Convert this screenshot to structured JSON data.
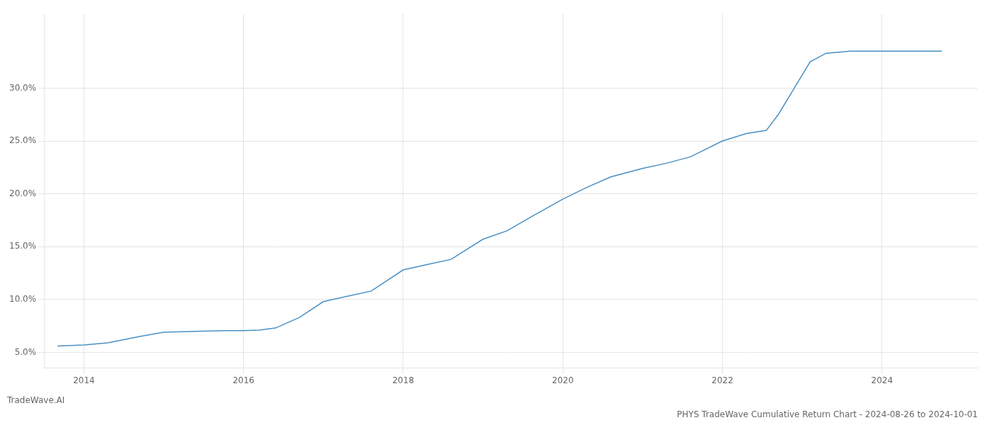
{
  "chart_data": {
    "type": "line",
    "title": "PHYS TradeWave Cumulative Return Chart - 2024-08-26 to 2024-10-01",
    "annotations": [
      "TradeWave.AI"
    ],
    "x": [
      2013.67,
      2014.0,
      2014.3,
      2014.7,
      2015.0,
      2015.5,
      2015.8,
      2016.0,
      2016.2,
      2016.4,
      2016.7,
      2017.0,
      2017.3,
      2017.6,
      2018.0,
      2018.3,
      2018.6,
      2019.0,
      2019.3,
      2019.6,
      2020.0,
      2020.3,
      2020.6,
      2021.0,
      2021.3,
      2021.6,
      2022.0,
      2022.3,
      2022.55,
      2022.7,
      2022.9,
      2023.1,
      2023.3,
      2023.6,
      2024.0,
      2024.5,
      2024.75
    ],
    "series": [
      {
        "color": "#4a90c4",
        "values": [
          5.6,
          5.7,
          5.9,
          6.5,
          6.9,
          7.0,
          7.05,
          7.05,
          7.1,
          7.3,
          8.3,
          9.8,
          10.3,
          10.8,
          12.8,
          13.3,
          13.8,
          15.7,
          16.5,
          17.8,
          19.5,
          20.6,
          21.6,
          22.4,
          22.9,
          23.5,
          25.0,
          25.7,
          26.0,
          27.5,
          30.0,
          32.5,
          33.3,
          33.5,
          33.5,
          33.5,
          33.5
        ]
      }
    ],
    "xlim": [
      2013.5,
      2025.2
    ],
    "ylim": [
      3.5,
      37.0
    ],
    "xticks": [
      2014,
      2016,
      2018,
      2020,
      2022,
      2024
    ],
    "yticks": [
      {
        "value": 5.0,
        "label": "5.0%"
      },
      {
        "value": 10.0,
        "label": "10.0%"
      },
      {
        "value": 15.0,
        "label": "15.0%"
      },
      {
        "value": 20.0,
        "label": "20.0%"
      },
      {
        "value": 25.0,
        "label": "25.0%"
      },
      {
        "value": 30.0,
        "label": "30.0%"
      }
    ],
    "grid": true
  }
}
